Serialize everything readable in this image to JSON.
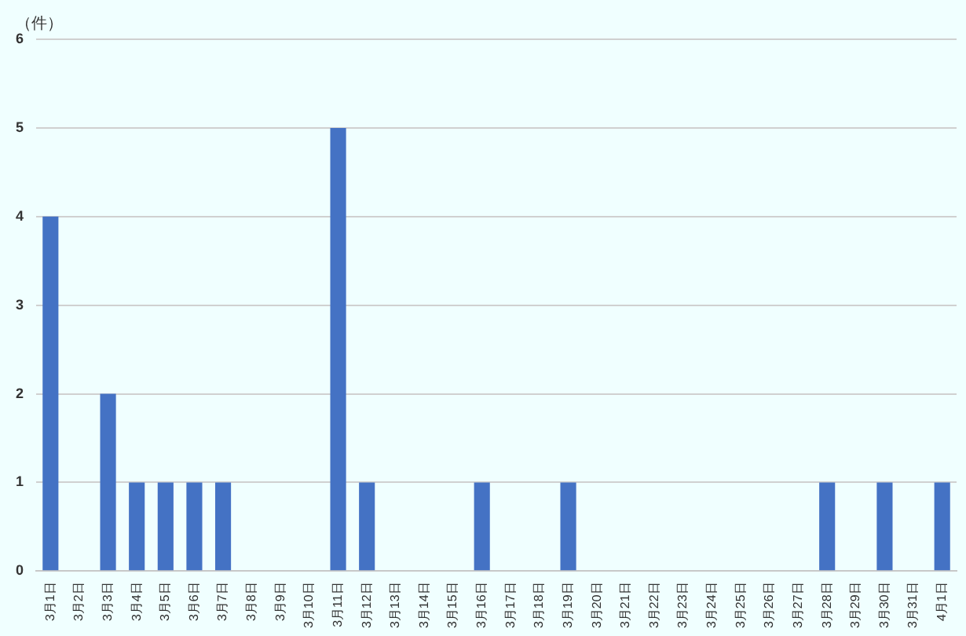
{
  "chart_data": {
    "type": "bar",
    "ylabel": "（件）",
    "categories": [
      "3月1日",
      "3月2日",
      "3月3日",
      "3月4日",
      "3月5日",
      "3月6日",
      "3月7日",
      "3月8日",
      "3月9日",
      "3月10日",
      "3月11日",
      "3月12日",
      "3月13日",
      "3月14日",
      "3月15日",
      "3月16日",
      "3月17日",
      "3月18日",
      "3月19日",
      "3月20日",
      "3月21日",
      "3月22日",
      "3月23日",
      "3月24日",
      "3月25日",
      "3月26日",
      "3月27日",
      "3月28日",
      "3月29日",
      "3月30日",
      "3月31日",
      "4月1日"
    ],
    "values": [
      4,
      0,
      2,
      1,
      1,
      1,
      1,
      0,
      0,
      0,
      5,
      1,
      0,
      0,
      0,
      1,
      0,
      0,
      1,
      0,
      0,
      0,
      0,
      0,
      0,
      0,
      0,
      1,
      0,
      1,
      0,
      1
    ],
    "color": "#4472c4",
    "ylim": [
      0,
      6
    ],
    "yticks": [
      0,
      1,
      2,
      3,
      4,
      5,
      6
    ],
    "grid": "y"
  }
}
